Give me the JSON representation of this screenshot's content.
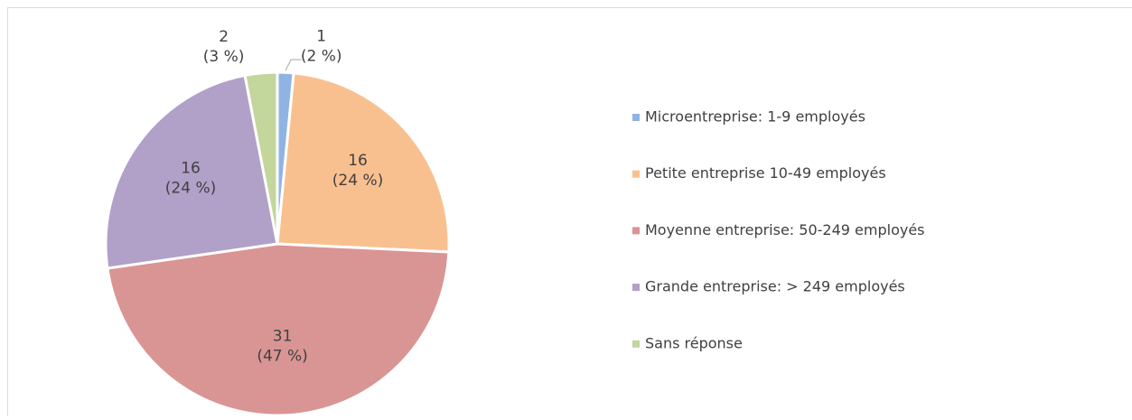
{
  "chart_data": {
    "type": "pie",
    "categories": [
      "Microentreprise: 1-9 employés",
      "Petite entreprise 10-49 employés",
      "Moyenne entreprise: 50-249 employés",
      "Grande entreprise: > 249 employés",
      "Sans réponse"
    ],
    "values": [
      1,
      16,
      31,
      16,
      2
    ],
    "percent_labels": [
      "(2 %)",
      "(24 %)",
      "(47 %)",
      "(24 %)",
      "(3 %)"
    ],
    "colors": [
      "#8fb4e3",
      "#f9c08f",
      "#d99594",
      "#b1a0c7",
      "#c3d69b"
    ],
    "legend": "right"
  }
}
